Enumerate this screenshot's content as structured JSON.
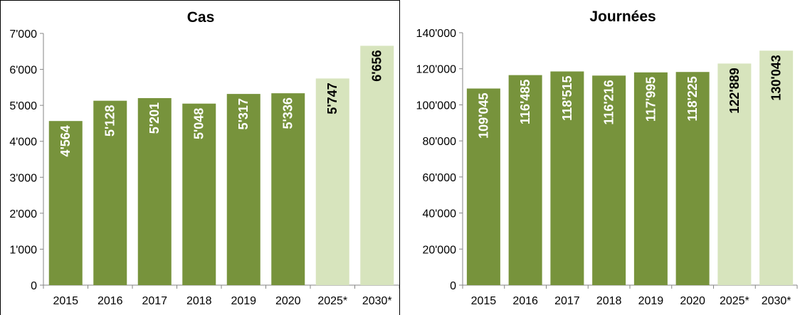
{
  "colors": {
    "actual": "#77933c",
    "projected": "#d7e4bd",
    "axis": "#868686"
  },
  "chart_data": [
    {
      "type": "bar",
      "title": "Cas",
      "categories": [
        "2015",
        "2016",
        "2017",
        "2018",
        "2019",
        "2020",
        "2025*",
        "2030*"
      ],
      "values": [
        4564,
        5128,
        5201,
        5048,
        5317,
        5336,
        5747,
        6656
      ],
      "value_labels": [
        "4'564",
        "5'128",
        "5'201",
        "5'048",
        "5'317",
        "5'336",
        "5'747",
        "6'656"
      ],
      "projected": [
        false,
        false,
        false,
        false,
        false,
        false,
        true,
        true
      ],
      "ylim": [
        0,
        7000
      ],
      "yticks": [
        0,
        1000,
        2000,
        3000,
        4000,
        5000,
        6000,
        7000
      ],
      "ytick_labels": [
        "0",
        "1'000",
        "2'000",
        "3'000",
        "4'000",
        "5'000",
        "6'000",
        "7'000"
      ],
      "grid": false,
      "legend": false
    },
    {
      "type": "bar",
      "title": "Journées",
      "categories": [
        "2015",
        "2016",
        "2017",
        "2018",
        "2019",
        "2020",
        "2025*",
        "2030*"
      ],
      "values": [
        109045,
        116485,
        118515,
        116216,
        117995,
        118225,
        122889,
        130043
      ],
      "value_labels": [
        "109'045",
        "116'485",
        "118'515",
        "116'216",
        "117'995",
        "118'225",
        "122'889",
        "130'043"
      ],
      "projected": [
        false,
        false,
        false,
        false,
        false,
        false,
        true,
        true
      ],
      "ylim": [
        0,
        140000
      ],
      "yticks": [
        0,
        20000,
        40000,
        60000,
        80000,
        100000,
        120000,
        140000
      ],
      "ytick_labels": [
        "0",
        "20'000",
        "40'000",
        "60'000",
        "80'000",
        "100'000",
        "120'000",
        "140'000"
      ],
      "grid": false,
      "legend": false
    }
  ]
}
